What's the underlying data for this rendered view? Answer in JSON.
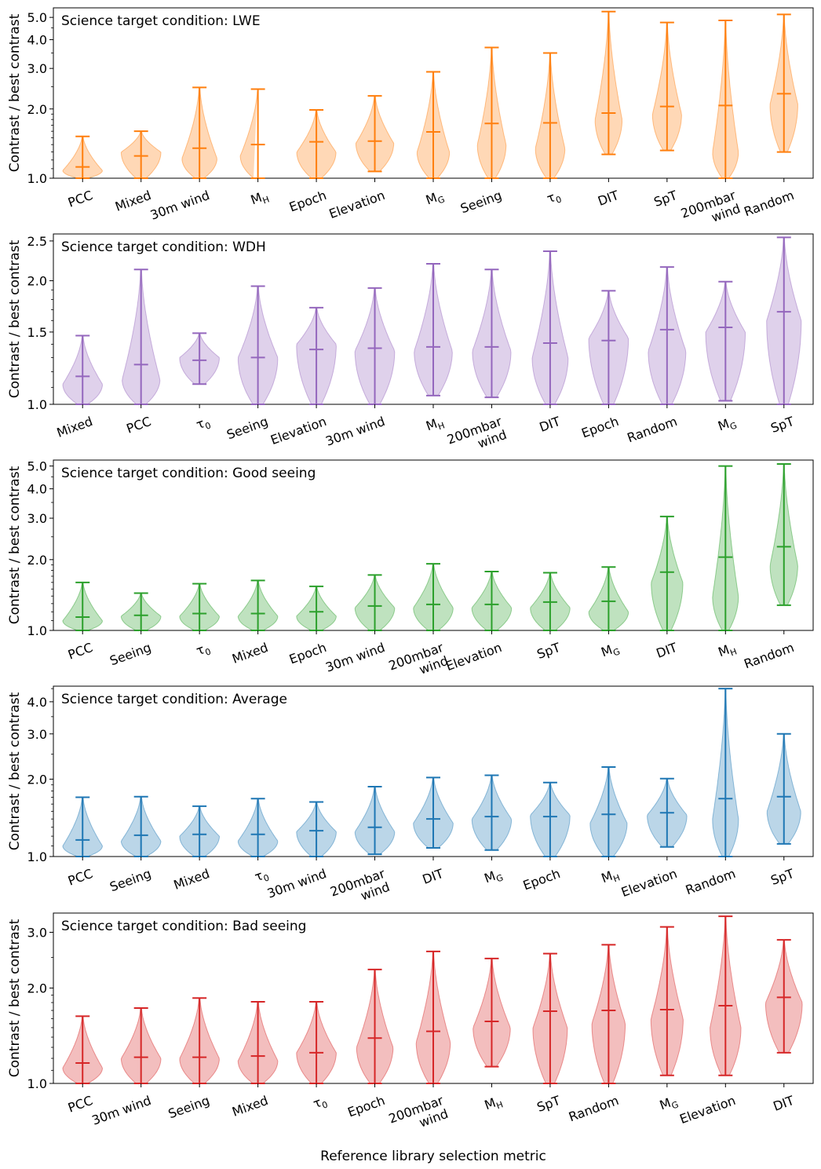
{
  "figure": {
    "xlabel": "Reference library selection metric"
  },
  "chart_data": [
    {
      "type": "violin",
      "scale": "log",
      "title": "Science target condition: LWE",
      "ylabel": "Contrast / best contrast",
      "color": "#ff7f0e",
      "ylim": [
        1.0,
        5.5
      ],
      "yticks": [
        1.0,
        2.0,
        3.0,
        4.0,
        5.0
      ],
      "ytick_labels": [
        "1.0",
        "2.0",
        "3.0",
        "4.0",
        "5.0"
      ],
      "categories": [
        "PCC",
        "Mixed",
        "30m wind",
        "M_H",
        "Epoch",
        "Elevation",
        "M_G",
        "Seeing",
        "τ_0",
        "DIT",
        "SpT",
        "200mbar\nwind",
        "Random"
      ],
      "min": [
        1.0,
        1.0,
        1.0,
        1.0,
        1.0,
        1.07,
        1.0,
        1.0,
        1.0,
        1.27,
        1.32,
        1.0,
        1.3
      ],
      "max": [
        1.52,
        1.6,
        2.48,
        2.44,
        1.98,
        2.28,
        2.9,
        3.7,
        3.5,
        5.3,
        4.75,
        4.85,
        5.15
      ],
      "median": [
        1.12,
        1.25,
        1.35,
        1.4,
        1.44,
        1.45,
        1.59,
        1.73,
        1.74,
        1.92,
        2.05,
        2.07,
        2.33
      ],
      "peak": [
        1.08,
        1.3,
        1.22,
        1.25,
        1.3,
        1.42,
        1.3,
        1.4,
        1.35,
        1.8,
        1.9,
        1.3,
        2.1
      ]
    },
    {
      "type": "violin",
      "scale": "log",
      "title": "Science target condition: WDH",
      "ylabel": "Contrast / best contrast",
      "color": "#9467bd",
      "ylim": [
        1.0,
        2.6
      ],
      "yticks": [
        1.0,
        1.5,
        2.0,
        2.5
      ],
      "ytick_labels": [
        "1.0",
        "1.5",
        "2.0",
        "2.5"
      ],
      "categories": [
        "Mixed",
        "PCC",
        "τ_0",
        "Seeing",
        "Elevation",
        "30m wind",
        "M_H",
        "200mbar\nwind",
        "DIT",
        "Epoch",
        "Random",
        "M_G",
        "SpT"
      ],
      "min": [
        1.0,
        1.0,
        1.12,
        1.0,
        1.0,
        1.0,
        1.05,
        1.04,
        1.0,
        1.0,
        1.0,
        1.02,
        1.0
      ],
      "max": [
        1.47,
        2.13,
        1.49,
        1.94,
        1.72,
        1.92,
        2.2,
        2.13,
        2.36,
        1.89,
        2.16,
        1.99,
        2.55
      ],
      "median": [
        1.17,
        1.25,
        1.28,
        1.3,
        1.36,
        1.37,
        1.38,
        1.38,
        1.41,
        1.43,
        1.52,
        1.54,
        1.68
      ],
      "peak": [
        1.12,
        1.15,
        1.3,
        1.3,
        1.4,
        1.35,
        1.35,
        1.35,
        1.3,
        1.45,
        1.35,
        1.5,
        1.6
      ]
    },
    {
      "type": "violin",
      "scale": "log",
      "title": "Science target condition: Good seeing",
      "ylabel": "Contrast / best contrast",
      "color": "#2ca02c",
      "ylim": [
        1.0,
        5.3
      ],
      "yticks": [
        1.0,
        2.0,
        3.0,
        4.0,
        5.0
      ],
      "ytick_labels": [
        "1.0",
        "2.0",
        "3.0",
        "4.0",
        "5.0"
      ],
      "categories": [
        "PCC",
        "Seeing",
        "τ_0",
        "Mixed",
        "Epoch",
        "30m wind",
        "200mbar\nwind",
        "Elevation",
        "SpT",
        "M_G",
        "DIT",
        "M_H",
        "Random"
      ],
      "min": [
        1.0,
        1.0,
        1.0,
        1.0,
        1.0,
        1.0,
        1.0,
        1.0,
        1.0,
        1.0,
        1.0,
        1.0,
        1.28
      ],
      "max": [
        1.6,
        1.44,
        1.58,
        1.63,
        1.54,
        1.72,
        1.92,
        1.78,
        1.76,
        1.86,
        3.05,
        5.0,
        5.1
      ],
      "median": [
        1.14,
        1.16,
        1.18,
        1.18,
        1.2,
        1.27,
        1.29,
        1.29,
        1.32,
        1.33,
        1.77,
        2.05,
        2.27
      ],
      "peak": [
        1.1,
        1.15,
        1.15,
        1.15,
        1.15,
        1.25,
        1.25,
        1.25,
        1.25,
        1.2,
        1.6,
        1.4,
        1.9
      ]
    },
    {
      "type": "violin",
      "scale": "log",
      "title": "Science target condition: Average",
      "ylabel": "Contrast / best contrast",
      "color": "#1f77b4",
      "ylim": [
        1.0,
        4.6
      ],
      "yticks": [
        1.0,
        2.0,
        3.0,
        4.0
      ],
      "ytick_labels": [
        "1.0",
        "2.0",
        "3.0",
        "4.0"
      ],
      "categories": [
        "PCC",
        "Seeing",
        "Mixed",
        "τ_0",
        "30m wind",
        "200mbar\nwind",
        "DIT",
        "M_G",
        "Epoch",
        "M_H",
        "Elevation",
        "Random",
        "SpT"
      ],
      "min": [
        1.0,
        1.0,
        1.0,
        1.0,
        1.0,
        1.02,
        1.08,
        1.06,
        1.0,
        1.0,
        1.09,
        1.0,
        1.12
      ],
      "max": [
        1.7,
        1.71,
        1.57,
        1.68,
        1.63,
        1.87,
        2.03,
        2.07,
        1.94,
        2.23,
        2.01,
        4.5,
        3.0
      ],
      "median": [
        1.16,
        1.21,
        1.22,
        1.22,
        1.26,
        1.3,
        1.4,
        1.43,
        1.43,
        1.46,
        1.48,
        1.68,
        1.71
      ],
      "peak": [
        1.1,
        1.15,
        1.2,
        1.15,
        1.25,
        1.25,
        1.35,
        1.4,
        1.45,
        1.35,
        1.45,
        1.4,
        1.5
      ]
    },
    {
      "type": "violin",
      "scale": "log",
      "title": "Science target condition: Bad seeing",
      "ylabel": "Contrast / best contrast",
      "color": "#d62728",
      "ylim": [
        1.0,
        3.45
      ],
      "yticks": [
        1.0,
        2.0,
        3.0
      ],
      "ytick_labels": [
        "1.0",
        "2.0",
        "3.0"
      ],
      "categories": [
        "PCC",
        "30m wind",
        "Seeing",
        "Mixed",
        "τ_0",
        "Epoch",
        "200mbar\nwind",
        "M_H",
        "SpT",
        "Random",
        "M_G",
        "Elevation",
        "DIT"
      ],
      "min": [
        1.0,
        1.0,
        1.0,
        1.0,
        1.0,
        1.0,
        1.0,
        1.13,
        1.0,
        1.0,
        1.06,
        1.06,
        1.25
      ],
      "max": [
        1.63,
        1.73,
        1.86,
        1.81,
        1.81,
        2.29,
        2.61,
        2.48,
        2.57,
        2.74,
        3.12,
        3.37,
        2.84
      ],
      "median": [
        1.16,
        1.21,
        1.21,
        1.22,
        1.25,
        1.39,
        1.46,
        1.57,
        1.69,
        1.7,
        1.71,
        1.76,
        1.87
      ],
      "peak": [
        1.12,
        1.2,
        1.2,
        1.18,
        1.25,
        1.3,
        1.35,
        1.5,
        1.5,
        1.55,
        1.6,
        1.5,
        1.8
      ]
    }
  ]
}
